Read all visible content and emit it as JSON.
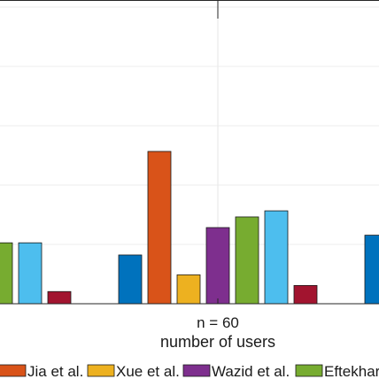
{
  "chart_data": {
    "type": "bar",
    "grid": true,
    "categories": [
      "",
      "n = 60",
      ""
    ],
    "xlabel": "number of users",
    "ylim": [
      0,
      100
    ],
    "legend_placement": "bottom",
    "series": [
      {
        "name": "",
        "color": "#0072bd",
        "values": [
          null,
          32,
          45
        ]
      },
      {
        "name": "Jia et al.",
        "color": "#d95319",
        "values": [
          null,
          100,
          null
        ]
      },
      {
        "name": "Xue et al.",
        "color": "#edb120",
        "values": [
          null,
          19,
          null
        ]
      },
      {
        "name": "Wazid et al.",
        "color": "#7e2f8e",
        "values": [
          null,
          50,
          null
        ]
      },
      {
        "name": "Eftekhar",
        "color": "#77ac30",
        "values": [
          40,
          57,
          null
        ]
      },
      {
        "name": "",
        "color": "#4dbeee",
        "values": [
          40,
          61,
          null
        ]
      },
      {
        "name": "",
        "color": "#a2142f",
        "values": [
          8,
          12,
          null
        ]
      }
    ]
  }
}
